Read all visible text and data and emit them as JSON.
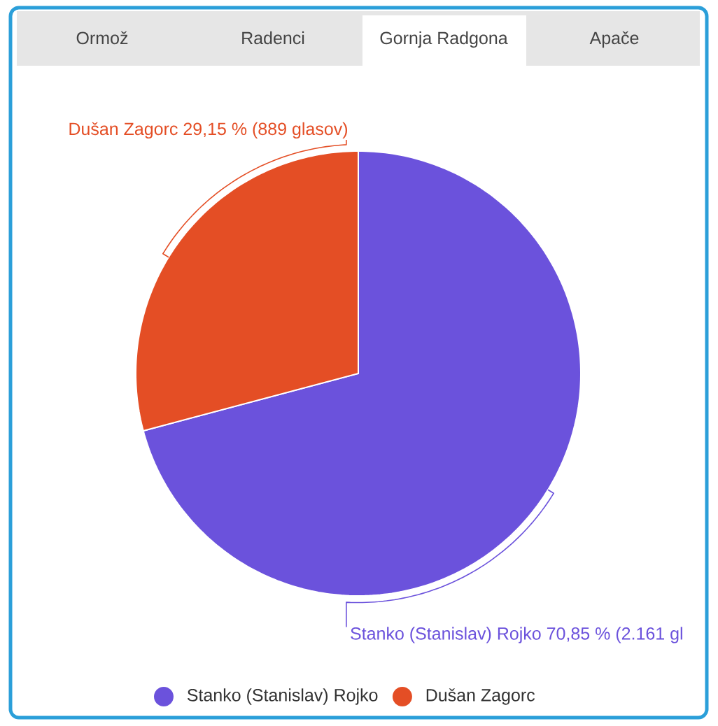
{
  "chart_data": {
    "type": "pie",
    "annotations": [
      "Ormož",
      "Radenci",
      "Gornja Radgona",
      "Apače"
    ],
    "categories": [
      "Stanko (Stanislav) Rojko",
      "Dušan Zagorc"
    ],
    "values": [
      70.85,
      29.15
    ],
    "colors": [
      "#6b52dc",
      "#e44e25"
    ],
    "value_labels": [
      "Stanko (Stanislav) Rojko 70,85 % (2.161 gl",
      "Dušan Zagorc 29,15 % (889 glasov)"
    ],
    "legend": "bottom"
  }
}
